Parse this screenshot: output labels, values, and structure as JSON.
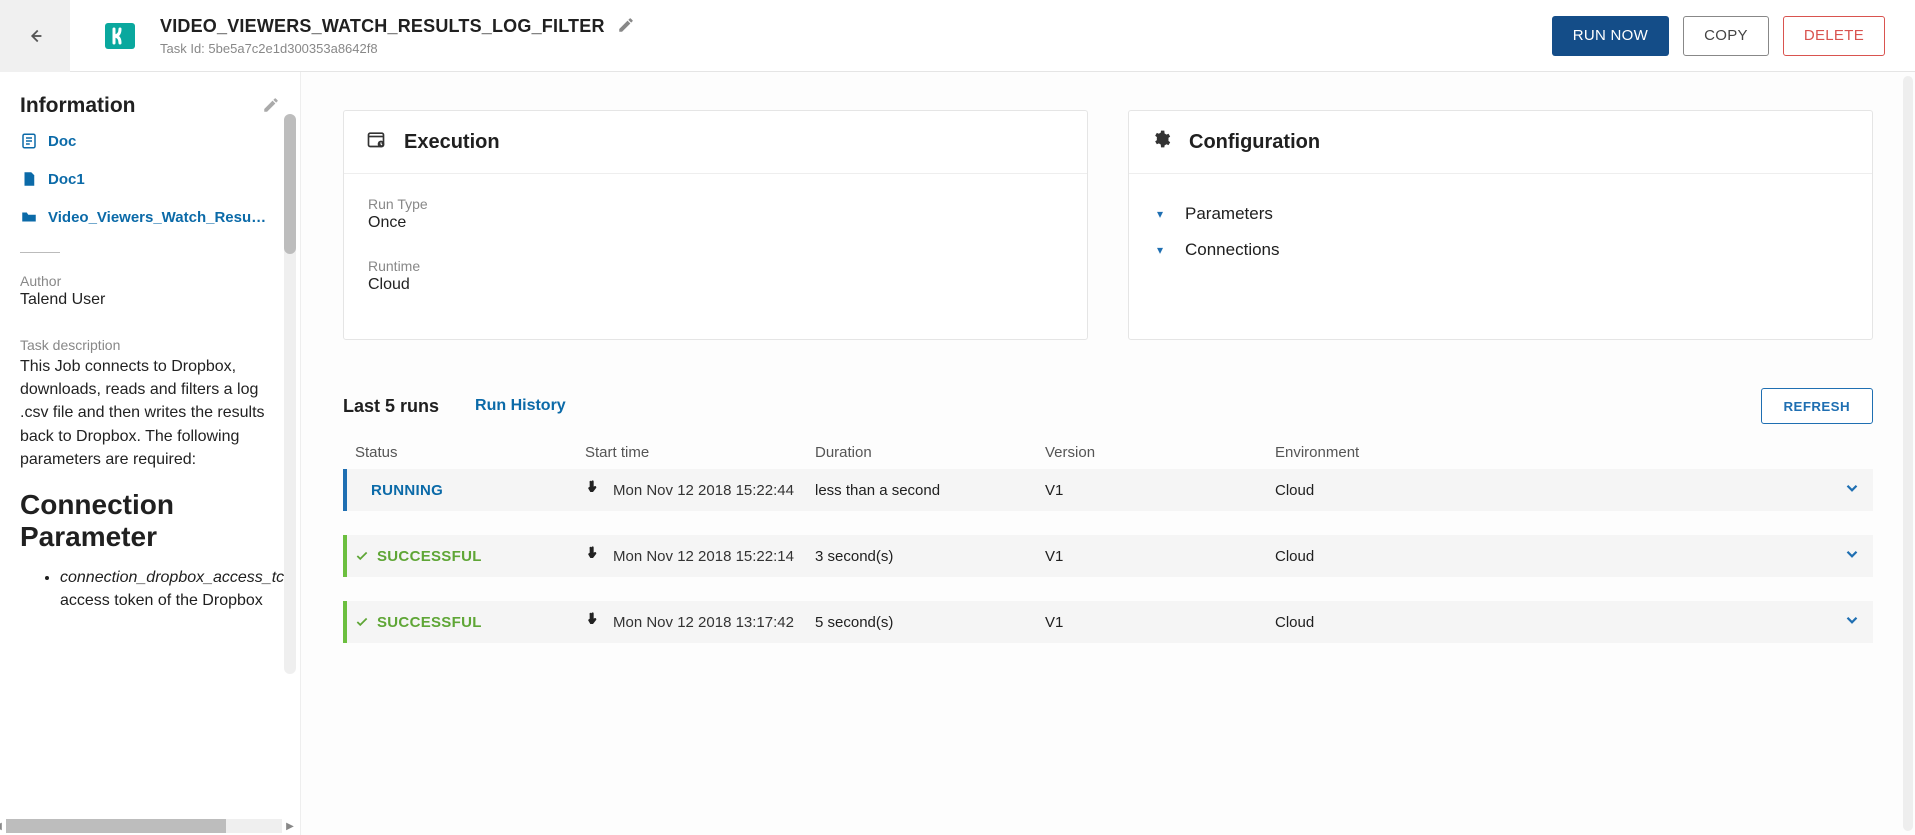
{
  "colors": {
    "primary": "#144d88",
    "link": "#0b6aa8",
    "success": "#5fa636",
    "danger": "#d9534f",
    "teal": "#0aa89e",
    "muted": "#888888"
  },
  "header": {
    "title": "VIDEO_VIEWERS_WATCH_RESULTS_LOG_FILTER",
    "task_id_label": "Task Id:",
    "task_id": "5be5a7c2e1d300353a8642f8",
    "run_now": "RUN NOW",
    "copy": "COPY",
    "delete": "DELETE"
  },
  "sidebar": {
    "heading": "Information",
    "links": [
      {
        "icon": "doc-icon",
        "label": "Doc"
      },
      {
        "icon": "file-icon",
        "label": "Doc1"
      },
      {
        "icon": "folder-icon",
        "label": "Video_Viewers_Watch_Results_"
      }
    ],
    "author_label": "Author",
    "author_value": "Talend User",
    "desc_label": "Task description",
    "desc_value": "This Job connects to Dropbox, downloads, reads and filters a log .csv file and then writes the results back to Dropbox. The following parameters are required:",
    "section_heading": "Connection Parameter",
    "bullet_item": "connection_dropbox_access_tc",
    "bullet_sub": "access token of the Dropbox"
  },
  "execution": {
    "title": "Execution",
    "run_type_label": "Run Type",
    "run_type_value": "Once",
    "runtime_label": "Runtime",
    "runtime_value": "Cloud"
  },
  "configuration": {
    "title": "Configuration",
    "items": [
      "Parameters",
      "Connections"
    ]
  },
  "runs": {
    "title": "Last 5 runs",
    "history_link": "Run History",
    "refresh": "REFRESH",
    "columns": {
      "status": "Status",
      "start": "Start time",
      "duration": "Duration",
      "version": "Version",
      "environment": "Environment"
    },
    "rows": [
      {
        "status": "RUNNING",
        "kind": "running",
        "start": "Mon Nov 12 2018 15:22:44",
        "duration": "less than a second",
        "version": "V1",
        "environment": "Cloud"
      },
      {
        "status": "SUCCESSFUL",
        "kind": "success",
        "start": "Mon Nov 12 2018 15:22:14",
        "duration": "3 second(s)",
        "version": "V1",
        "environment": "Cloud"
      },
      {
        "status": "SUCCESSFUL",
        "kind": "success",
        "start": "Mon Nov 12 2018 13:17:42",
        "duration": "5 second(s)",
        "version": "V1",
        "environment": "Cloud"
      }
    ]
  }
}
